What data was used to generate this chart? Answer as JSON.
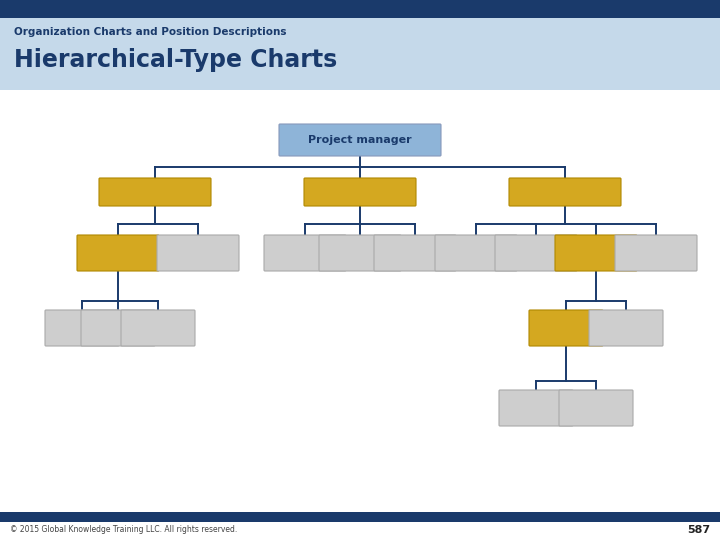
{
  "title_line1": "Organization Charts and Position Descriptions",
  "title_line2": "Hierarchical-Type Charts",
  "footer_text": "© 2015 Global Knowledge Training LLC. All rights reserved.",
  "footer_page": "587",
  "header_bg": "#c5d9ea",
  "header_stripe_color": "#1a3a6b",
  "footer_bg": "#1a3a6b",
  "title_color": "#1a3a6b",
  "line_color": "#1a3a6b",
  "box_gold": "#d4a820",
  "box_blue": "#8eb4d8",
  "box_gray": "#cecece"
}
